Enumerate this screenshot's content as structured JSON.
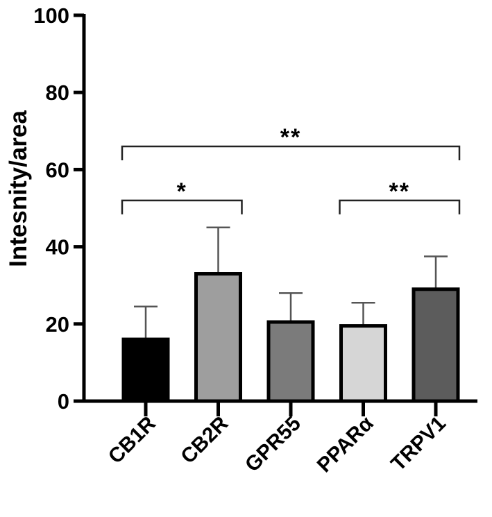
{
  "chart_data": {
    "type": "bar",
    "title": "",
    "xlabel": "",
    "ylabel": "Intesnity/area",
    "ylim": [
      0,
      100
    ],
    "yticks": [
      0,
      20,
      40,
      60,
      80,
      100
    ],
    "grid": false,
    "categories": [
      "CB1R",
      "CB2R",
      "GPR55",
      "PPARα",
      "TRPV1"
    ],
    "values": [
      16,
      33,
      20.5,
      19.5,
      29
    ],
    "errors": [
      8.5,
      12,
      7.5,
      6,
      8.5
    ],
    "colors": [
      "#000000",
      "#9e9e9e",
      "#7b7b7b",
      "#d6d6d6",
      "#5c5c5c"
    ],
    "significance": [
      {
        "from": 0,
        "to": 4,
        "y": 66,
        "label": "**"
      },
      {
        "from": 0,
        "to": 1,
        "y": 52,
        "label": "*"
      },
      {
        "from": 3,
        "to": 4,
        "y": 52,
        "label": "**"
      }
    ]
  }
}
